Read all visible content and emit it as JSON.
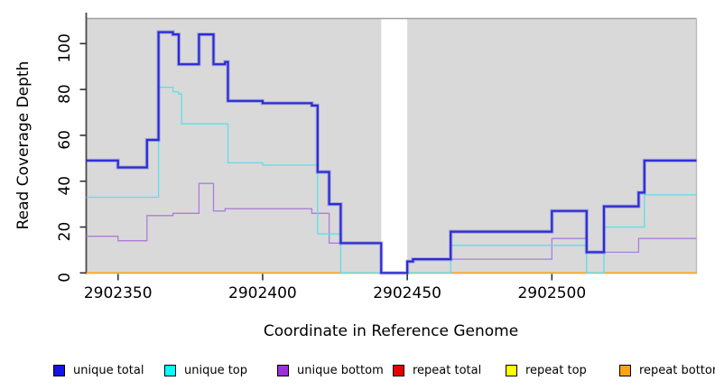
{
  "chart_data": {
    "type": "line",
    "line_style": "step-after",
    "title": "",
    "xlabel": "Coordinate in Reference Genome",
    "ylabel": "Read Coverage Depth",
    "xlim": [
      2902339,
      2902550
    ],
    "ylim": [
      0,
      111
    ],
    "x_ticks": [
      2902350,
      2902400,
      2902450,
      2902500
    ],
    "x_tick_labels": [
      "2902350",
      "2902400",
      "2902450",
      "2902500"
    ],
    "y_ticks": [
      0,
      20,
      40,
      60,
      80,
      100
    ],
    "y_tick_labels": [
      "0",
      "20",
      "40",
      "60",
      "80",
      "100"
    ],
    "grid": false,
    "plot_background": "#d9d9d9",
    "gap_region": {
      "x_start": 2902441,
      "x_end": 2902450,
      "color": "#ffffff"
    },
    "legend_position": "bottom",
    "draw_order": [
      3,
      4,
      5,
      2,
      1,
      0
    ],
    "series": [
      {
        "name": "unique total",
        "line_color": "#2b2bd5",
        "legend_color": "#1414e6",
        "line_width": 2.2,
        "points": [
          [
            2902339,
            49
          ],
          [
            2902350,
            46
          ],
          [
            2902360,
            58
          ],
          [
            2902364,
            105
          ],
          [
            2902369,
            104
          ],
          [
            2902371,
            91
          ],
          [
            2902378,
            104
          ],
          [
            2902383,
            91
          ],
          [
            2902387,
            92
          ],
          [
            2902388,
            75
          ],
          [
            2902400,
            74
          ],
          [
            2902417,
            73
          ],
          [
            2902419,
            44
          ],
          [
            2902423,
            30
          ],
          [
            2902427,
            13
          ],
          [
            2902441,
            0
          ],
          [
            2902450,
            5
          ],
          [
            2902452,
            6
          ],
          [
            2902465,
            18
          ],
          [
            2902500,
            27
          ],
          [
            2902512,
            9
          ],
          [
            2902518,
            29
          ],
          [
            2902530,
            35
          ],
          [
            2902532,
            49
          ]
        ]
      },
      {
        "name": "unique top",
        "line_color": "#5cdee8",
        "legend_color": "#00ffff",
        "line_width": 1.3,
        "points": [
          [
            2902339,
            33
          ],
          [
            2902364,
            81
          ],
          [
            2902369,
            79
          ],
          [
            2902371,
            78
          ],
          [
            2902372,
            65
          ],
          [
            2902388,
            48
          ],
          [
            2902400,
            47
          ],
          [
            2902419,
            17
          ],
          [
            2902427,
            0
          ],
          [
            2902465,
            12
          ],
          [
            2902512,
            0
          ],
          [
            2902518,
            20
          ],
          [
            2902532,
            34
          ]
        ]
      },
      {
        "name": "unique bottom",
        "line_color": "#ad7dd9",
        "legend_color": "#9b30d9",
        "line_width": 1.3,
        "points": [
          [
            2902339,
            16
          ],
          [
            2902350,
            14
          ],
          [
            2902360,
            25
          ],
          [
            2902369,
            26
          ],
          [
            2902378,
            39
          ],
          [
            2902383,
            27
          ],
          [
            2902387,
            28
          ],
          [
            2902417,
            26
          ],
          [
            2902423,
            13
          ],
          [
            2902441,
            0
          ],
          [
            2902450,
            5
          ],
          [
            2902452,
            6
          ],
          [
            2902500,
            15
          ],
          [
            2902512,
            9
          ],
          [
            2902530,
            15
          ]
        ]
      },
      {
        "name": "repeat total",
        "line_color": "#e60000",
        "legend_color": "#e60000",
        "line_width": 1.3,
        "points": [
          [
            2902339,
            0
          ]
        ]
      },
      {
        "name": "repeat top",
        "line_color": "#ffff00",
        "legend_color": "#ffff00",
        "line_width": 1.3,
        "points": [
          [
            2902339,
            0
          ]
        ]
      },
      {
        "name": "repeat bottom",
        "line_color": "#ffa30f",
        "legend_color": "#ffa30f",
        "line_width": 1.6,
        "points": [
          [
            2902339,
            0
          ]
        ]
      }
    ]
  }
}
